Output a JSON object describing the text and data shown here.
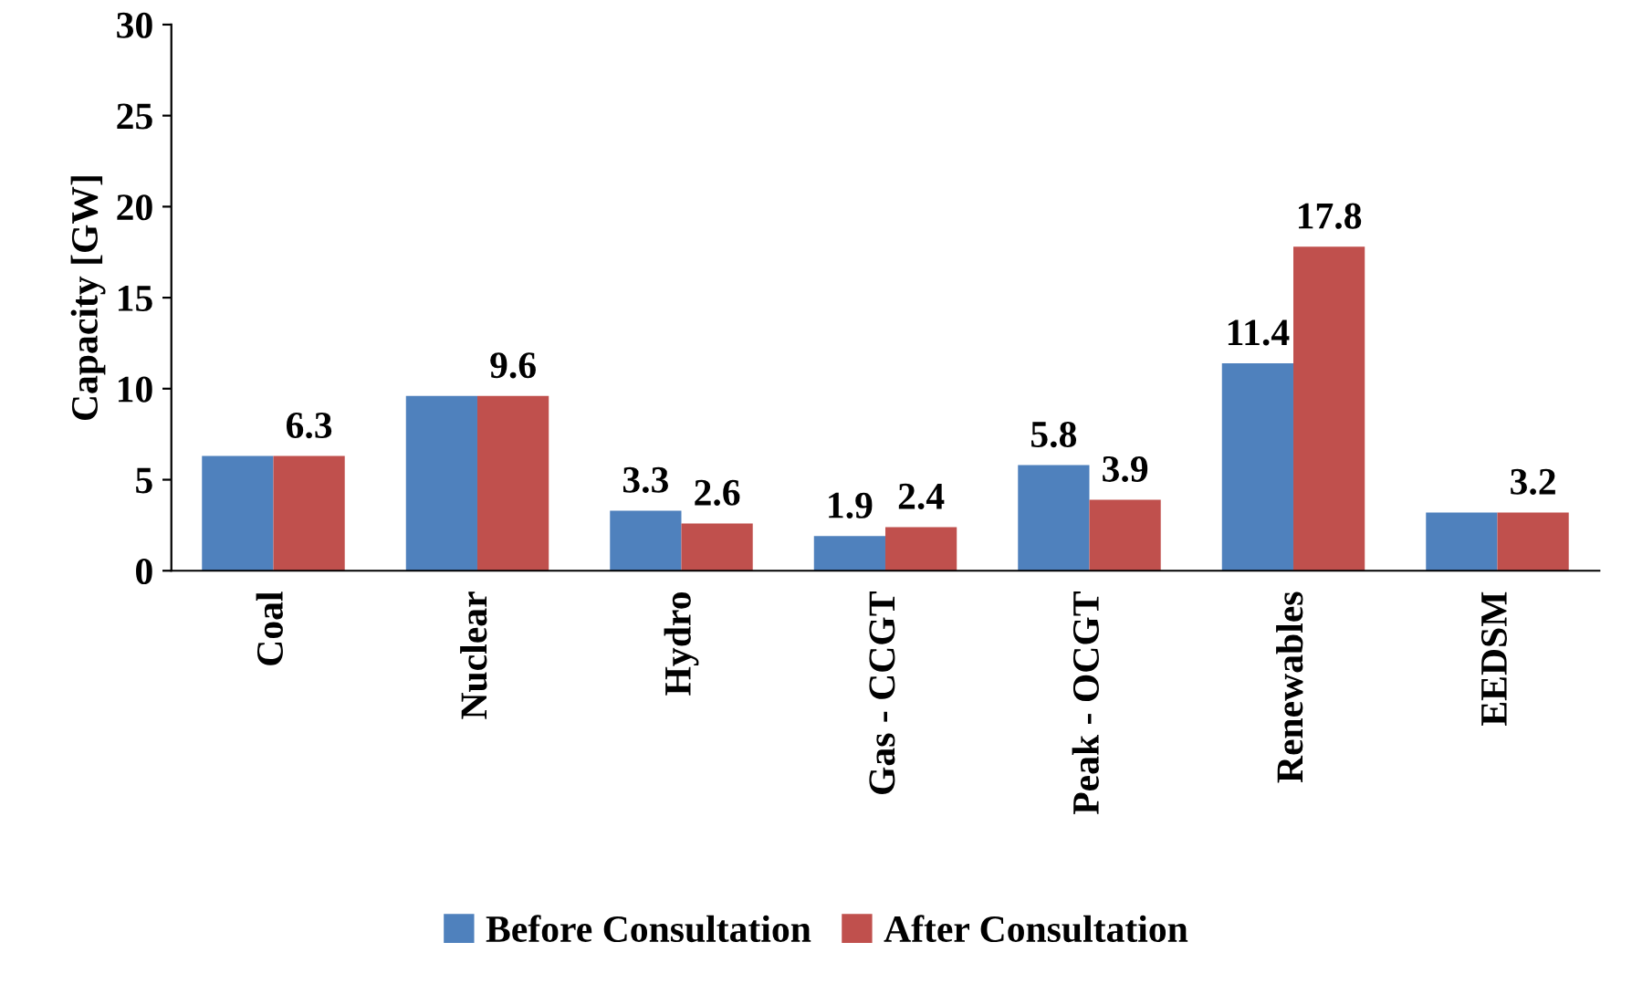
{
  "chart_data": {
    "type": "bar",
    "ylabel": "Capacity [GW]",
    "categories": [
      "Coal",
      "Nuclear",
      "Hydro",
      "Gas - CCGT",
      "Peak - OCGT",
      "Renewables",
      "EEDSM"
    ],
    "series": [
      {
        "name": "Before Consultation",
        "color": "#4f81bd",
        "values": [
          6.3,
          9.6,
          3.3,
          1.9,
          5.8,
          11.4,
          3.2
        ],
        "value_labels": [
          null,
          null,
          "3.3",
          "1.9",
          "5.8",
          "11.4",
          null
        ]
      },
      {
        "name": "After Consultation",
        "color": "#c0504d",
        "values": [
          6.3,
          9.6,
          2.6,
          2.4,
          3.9,
          17.8,
          3.2
        ],
        "value_labels": [
          "6.3",
          "9.6",
          "2.6",
          "2.4",
          "3.9",
          "17.8",
          "3.2"
        ]
      }
    ],
    "ylim": [
      0,
      30
    ],
    "yticks": [
      0,
      5,
      10,
      15,
      20,
      25,
      30
    ],
    "grid": false,
    "legend": "bottom"
  }
}
